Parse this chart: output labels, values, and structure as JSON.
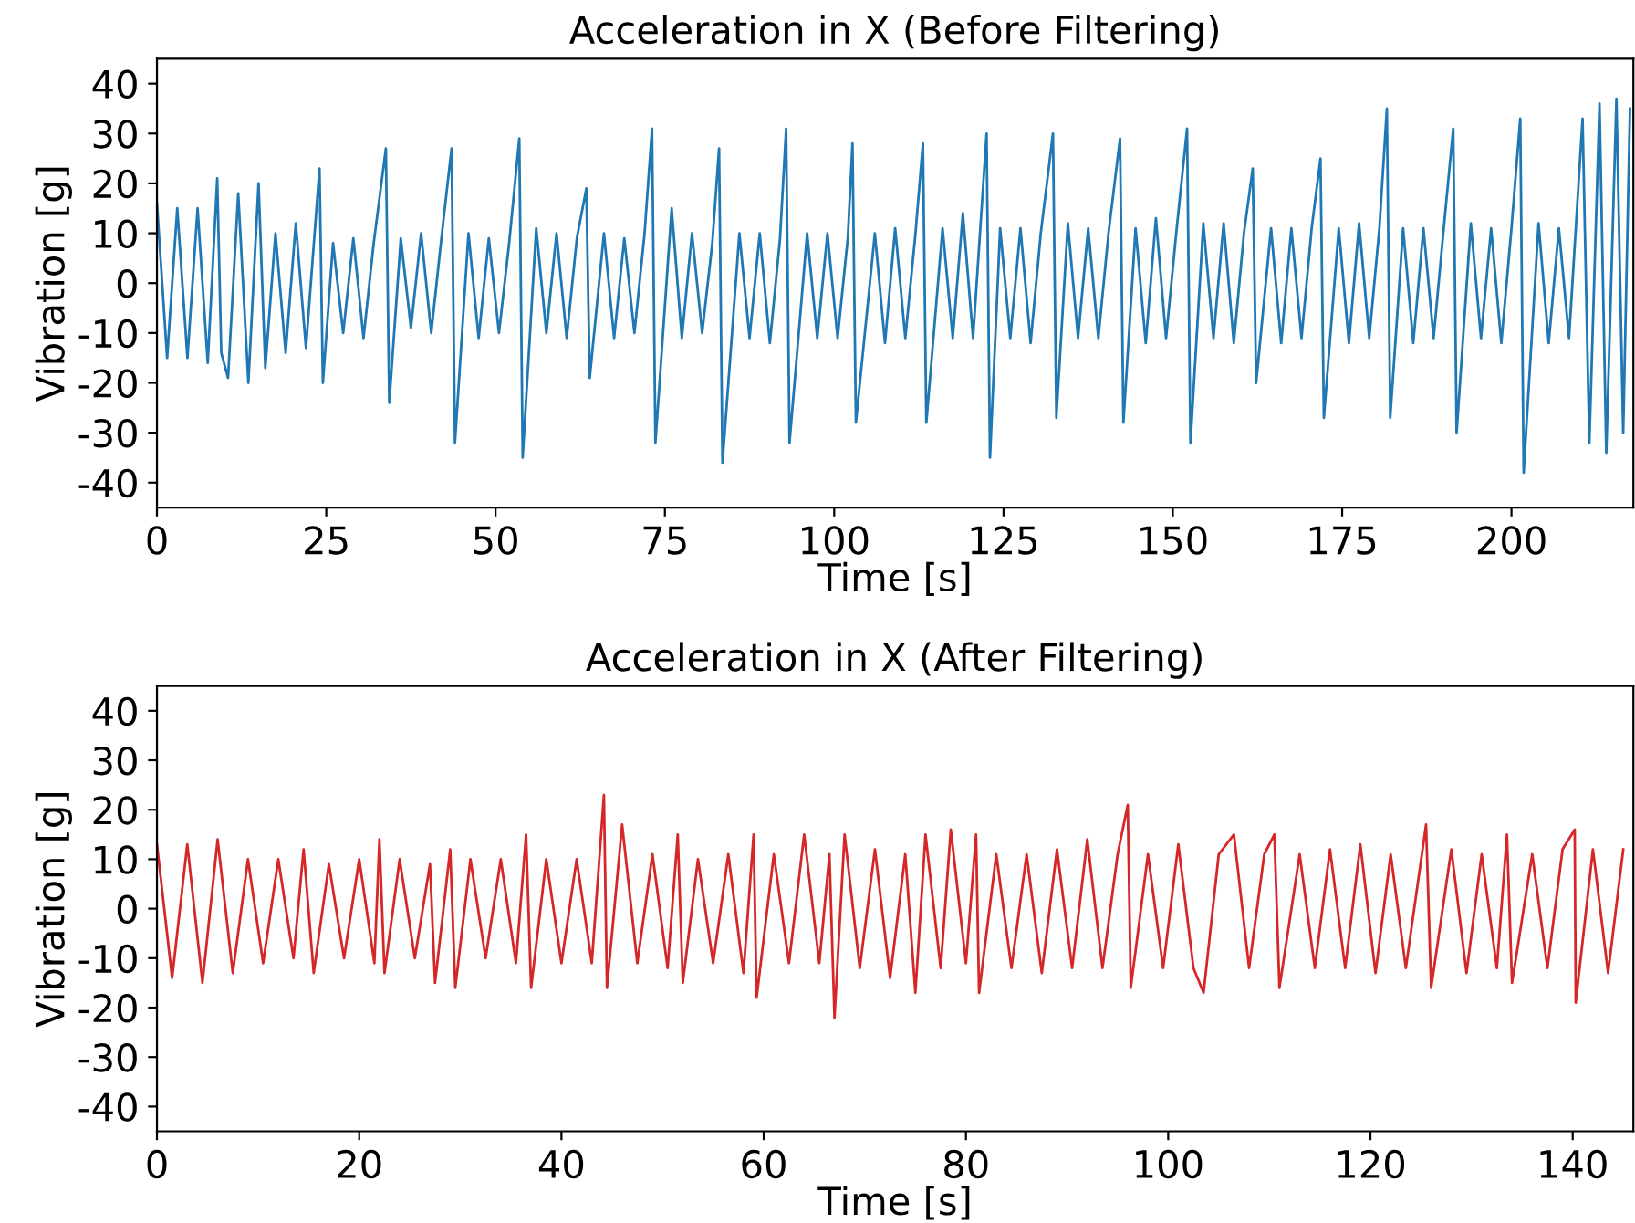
{
  "chart_data": [
    {
      "type": "line",
      "title": "Acceleration in X (Before Filtering)",
      "xlabel": "Time [s]",
      "ylabel": "Vibration [g]",
      "xlim": [
        0,
        218
      ],
      "xticks": [
        0,
        25,
        50,
        75,
        100,
        125,
        150,
        175,
        200
      ],
      "ylim": [
        -45,
        45
      ],
      "yticks": [
        -40,
        -30,
        -20,
        -10,
        0,
        10,
        20,
        30,
        40
      ],
      "grid": false,
      "legend": false,
      "series": [
        {
          "color": "#1f77b4",
          "x": [
            0,
            1.5,
            3,
            4.5,
            6,
            7.5,
            8.9,
            9.5,
            10.5,
            12,
            13.5,
            15,
            16,
            17.5,
            19,
            20.5,
            22,
            24,
            24.5,
            26,
            27.5,
            29,
            30.5,
            32,
            33.8,
            34.3,
            36,
            37.5,
            39,
            40.5,
            42,
            43.5,
            44,
            46,
            47.5,
            49,
            50.5,
            52,
            53.5,
            54,
            56,
            57.5,
            59,
            60.5,
            62,
            63.4,
            63.9,
            66,
            67.5,
            69,
            70.5,
            72,
            73.1,
            73.6,
            76,
            77.5,
            79,
            80.5,
            82,
            83,
            83.5,
            86,
            87.5,
            89,
            90.5,
            92,
            92.9,
            93.4,
            96,
            97.5,
            99,
            100.5,
            102,
            102.7,
            103.2,
            106,
            107.5,
            109,
            110.5,
            112,
            113.1,
            113.6,
            116,
            117.5,
            119,
            120.5,
            122.5,
            123,
            124.5,
            126,
            127.5,
            129,
            130.5,
            132.3,
            132.8,
            134.5,
            136,
            137.5,
            139,
            140.5,
            142.2,
            142.7,
            144.5,
            146,
            147.5,
            149,
            150.5,
            152.1,
            152.6,
            154.5,
            156,
            157.5,
            159,
            160.5,
            161.8,
            162.3,
            164.5,
            166,
            167.5,
            169,
            170.5,
            171.8,
            172.3,
            174.5,
            176,
            177.5,
            179,
            180.5,
            181.6,
            182.1,
            184,
            185.5,
            187,
            188.5,
            190,
            191.4,
            191.9,
            194,
            195.5,
            197,
            198.5,
            200,
            201.3,
            201.8,
            204,
            205.5,
            207,
            208.5,
            210.5,
            211.5,
            213,
            214,
            215.5,
            216.5,
            217.5
          ],
          "values": [
            16,
            -15,
            15,
            -15,
            15,
            -16,
            21,
            -14,
            -19,
            18,
            -20,
            20,
            -17,
            10,
            -14,
            12,
            -13,
            23,
            -20,
            8,
            -10,
            9,
            -11,
            8,
            27,
            -24,
            9,
            -9,
            10,
            -10,
            9,
            27,
            -32,
            10,
            -11,
            9,
            -10,
            8,
            29,
            -35,
            11,
            -10,
            10,
            -11,
            9,
            19,
            -19,
            10,
            -11,
            9,
            -10,
            10,
            31,
            -32,
            15,
            -11,
            10,
            -10,
            8,
            27,
            -36,
            10,
            -11,
            10,
            -12,
            9,
            31,
            -32,
            10,
            -11,
            10,
            -11,
            9,
            28,
            -28,
            10,
            -12,
            11,
            -11,
            10,
            28,
            -28,
            11,
            -11,
            14,
            -11,
            30,
            -35,
            11,
            -11,
            11,
            -12,
            10,
            30,
            -27,
            12,
            -11,
            11,
            -11,
            10,
            29,
            -28,
            11,
            -12,
            13,
            -11,
            10,
            31,
            -32,
            12,
            -11,
            12,
            -12,
            10,
            23,
            -20,
            11,
            -12,
            11,
            -11,
            11,
            25,
            -27,
            11,
            -12,
            12,
            -11,
            11,
            35,
            -27,
            11,
            -12,
            11,
            -11,
            11,
            31,
            -30,
            12,
            -11,
            11,
            -12,
            11,
            33,
            -38,
            12,
            -12,
            11,
            -11,
            33,
            -32,
            36,
            -34,
            37,
            -30,
            35
          ]
        }
      ]
    },
    {
      "type": "line",
      "title": "Acceleration in X (After Filtering)",
      "xlabel": "Time [s]",
      "ylabel": "Vibration [g]",
      "xlim": [
        0,
        146
      ],
      "xticks": [
        0,
        20,
        40,
        60,
        80,
        100,
        120,
        140
      ],
      "ylim": [
        -45,
        45
      ],
      "yticks": [
        -40,
        -30,
        -20,
        -10,
        0,
        10,
        20,
        30,
        40
      ],
      "grid": false,
      "legend": false,
      "series": [
        {
          "color": "#d62728",
          "x": [
            0,
            1.5,
            3,
            4.5,
            6,
            7.5,
            9,
            10.5,
            12,
            13.5,
            14.5,
            15.5,
            17,
            18.5,
            20,
            21.5,
            22,
            22.5,
            24,
            25.5,
            27,
            27.5,
            29,
            29.5,
            31,
            32.5,
            34,
            35.5,
            36.5,
            37,
            38.5,
            40,
            41.5,
            43,
            44.2,
            44.5,
            46,
            47.5,
            49,
            50.5,
            51.5,
            52,
            53.5,
            55,
            56.5,
            58,
            59,
            59.3,
            61,
            62.5,
            64,
            65.5,
            66.5,
            67,
            68,
            69.5,
            71,
            72.5,
            74,
            75,
            76,
            77.5,
            78.5,
            80,
            81,
            81.3,
            83,
            84.5,
            86,
            87.5,
            89,
            90.5,
            92,
            93.5,
            95,
            96,
            96.3,
            98,
            99.5,
            101,
            102.5,
            103.5,
            105,
            106.5,
            108,
            109.5,
            110.5,
            111,
            113,
            114.5,
            116,
            117.5,
            119,
            120.5,
            122,
            123.5,
            125.5,
            126,
            128,
            129.5,
            131,
            132.5,
            133.5,
            134,
            136,
            137.5,
            139,
            140.2,
            140.3,
            142,
            143.5,
            145
          ],
          "values": [
            13,
            -14,
            13,
            -15,
            14,
            -13,
            10,
            -11,
            10,
            -10,
            12,
            -13,
            9,
            -10,
            10,
            -11,
            14,
            -13,
            10,
            -10,
            9,
            -15,
            12,
            -16,
            10,
            -10,
            10,
            -11,
            15,
            -16,
            10,
            -11,
            10,
            -11,
            23,
            -16,
            17,
            -11,
            11,
            -12,
            15,
            -15,
            10,
            -11,
            11,
            -13,
            15,
            -18,
            11,
            -11,
            15,
            -11,
            11,
            -22,
            15,
            -12,
            12,
            -14,
            11,
            -17,
            15,
            -12,
            16,
            -11,
            15,
            -17,
            11,
            -12,
            11,
            -13,
            12,
            -12,
            14,
            -12,
            11,
            21,
            -16,
            11,
            -12,
            13,
            -12,
            -17,
            11,
            15,
            -12,
            11,
            15,
            -16,
            11,
            -12,
            12,
            -12,
            13,
            -13,
            11,
            -12,
            17,
            -16,
            12,
            -13,
            11,
            -12,
            15,
            -15,
            11,
            -12,
            12,
            16,
            -19,
            12,
            -13,
            12
          ]
        }
      ]
    }
  ]
}
